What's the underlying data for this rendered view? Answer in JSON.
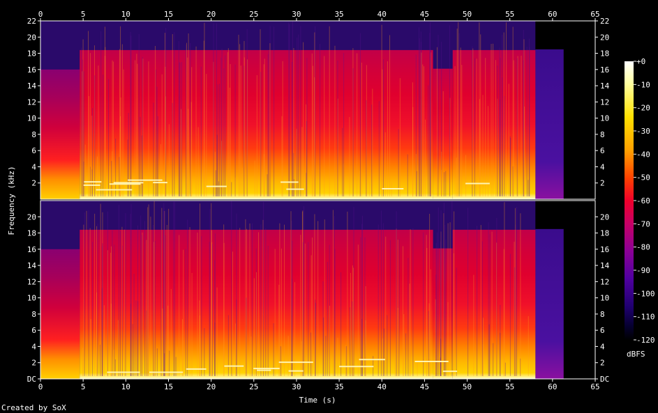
{
  "footer": {
    "credit": "Created by SoX"
  },
  "chart_data": {
    "type": "heatmap",
    "title": "",
    "xlabel": "Time (s)",
    "ylabel": "Frequency (kHz)",
    "xlim": [
      0,
      65
    ],
    "ylim": [
      0,
      22
    ],
    "x_ticks": [
      "0",
      "5",
      "10",
      "15",
      "20",
      "25",
      "30",
      "35",
      "40",
      "45",
      "50",
      "55",
      "60",
      "65"
    ],
    "y_ticks_top": [
      "2",
      "4",
      "6",
      "8",
      "10",
      "12",
      "14",
      "16",
      "18",
      "20",
      "22"
    ],
    "y_ticks_bottom": [
      "DC",
      "2",
      "4",
      "6",
      "8",
      "10",
      "12",
      "14",
      "16",
      "18",
      "20"
    ],
    "channels": 2,
    "colorbar": {
      "label": "dBFS",
      "range": [
        -120,
        0
      ],
      "ticks": [
        "+0",
        "-10",
        "-20",
        "-30",
        "-40",
        "-50",
        "-60",
        "-70",
        "-80",
        "-90",
        "-100",
        "-110",
        "-120"
      ]
    },
    "audio_end_s": 58,
    "tail_end_s": 61.3,
    "segments": [
      {
        "start_s": 0,
        "end_s": 4.6,
        "cutoff_khz": 16,
        "level_dbfs": -62
      },
      {
        "start_s": 4.6,
        "end_s": 46,
        "cutoff_khz": 18.4,
        "level_dbfs": -52
      },
      {
        "start_s": 46,
        "end_s": 48.3,
        "cutoff_khz": 16.1,
        "level_dbfs": -60
      },
      {
        "start_s": 48.3,
        "end_s": 58,
        "cutoff_khz": 18.4,
        "level_dbfs": -52
      },
      {
        "start_s": 58,
        "end_s": 61.3,
        "cutoff_khz": 18.5,
        "level_dbfs": -92
      }
    ]
  }
}
